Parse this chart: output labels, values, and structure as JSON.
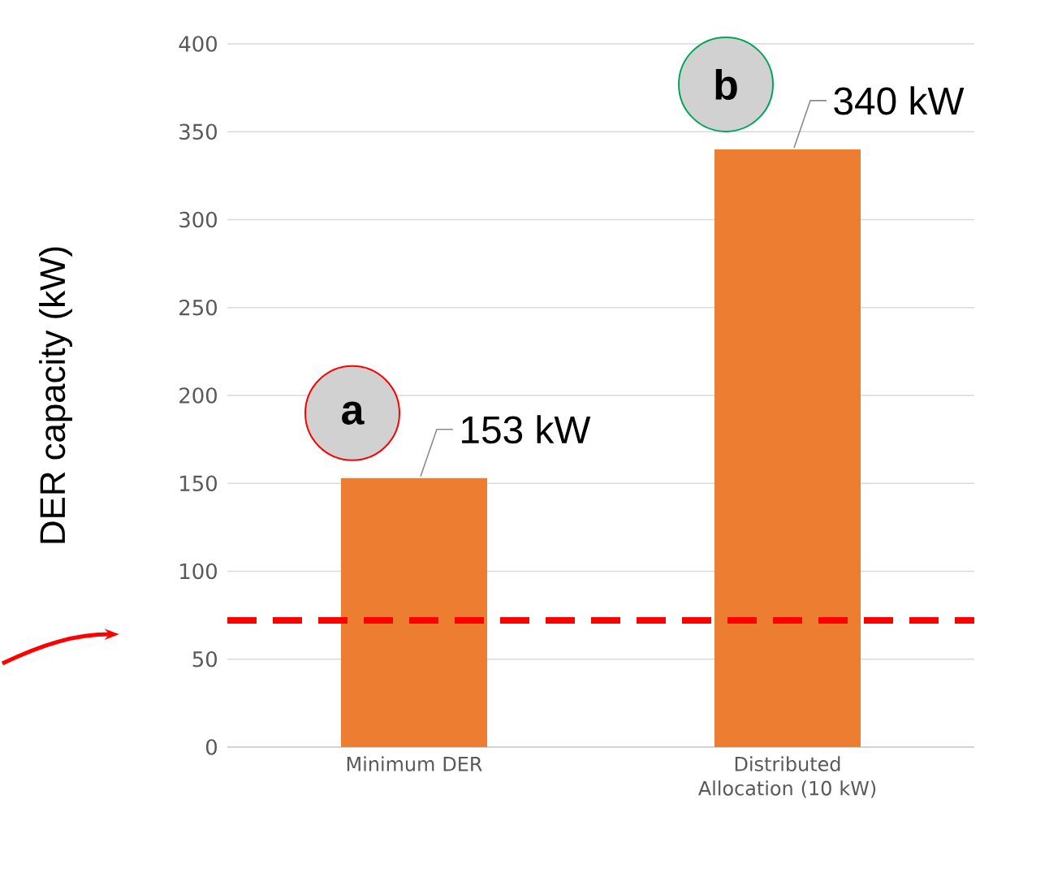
{
  "chart_data": {
    "type": "bar",
    "ylabel": "DER capacity (kW)",
    "categories": [
      "Minimum DER",
      "Distributed Allocation (10 kW)"
    ],
    "values": [
      153,
      340
    ],
    "color": "#ed7d31",
    "value_labels": [
      "153 kW",
      "340 kW"
    ],
    "ylim": [
      0,
      400
    ],
    "yticks": [
      0,
      50,
      100,
      150,
      200,
      250,
      300,
      350,
      400
    ],
    "grid": "y",
    "ref_lines": [
      {
        "axis": "y",
        "value": 72,
        "color": "#ff0000",
        "line_style": "dashed"
      }
    ],
    "annotations": [
      "a",
      "b"
    ]
  }
}
